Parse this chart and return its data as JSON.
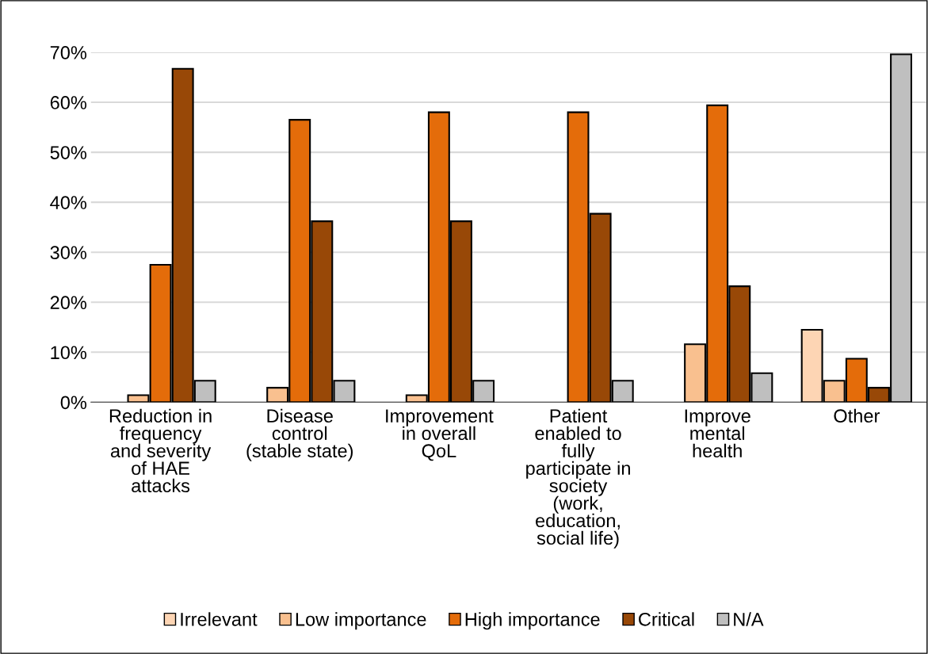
{
  "chart_data": {
    "type": "bar",
    "categories": [
      "Reduction in\nfrequency\nand severity\nof HAE\nattacks",
      "Disease\ncontrol\n(stable state)",
      "Improvement\nin overall\nQoL",
      "Patient\nenabled to\nfully\nparticipate in\nsociety\n(work,\neducation,\nsocial life)",
      "Improve\nmental\nhealth",
      "Other"
    ],
    "series": [
      {
        "name": "Irrelevant",
        "color": "#fdd5b4",
        "values": [
          null,
          null,
          null,
          null,
          null,
          14.5
        ]
      },
      {
        "name": "Low importance",
        "color": "#f9c08f",
        "values": [
          1.4,
          2.9,
          1.4,
          null,
          11.6,
          4.3
        ]
      },
      {
        "name": "High importance",
        "color": "#e46c0a",
        "values": [
          27.5,
          56.5,
          58.0,
          58.0,
          59.4,
          8.7
        ]
      },
      {
        "name": "Critical",
        "color": "#984807",
        "values": [
          66.7,
          36.2,
          36.2,
          37.7,
          23.2,
          2.9
        ]
      },
      {
        "name": "N/A",
        "color": "#bfbfbf",
        "values": [
          4.3,
          4.3,
          4.3,
          4.3,
          5.8,
          69.6
        ]
      }
    ],
    "ylim": [
      0,
      70
    ],
    "yticks": [
      {
        "value": 0,
        "label": "0%"
      },
      {
        "value": 10,
        "label": "10%"
      },
      {
        "value": 20,
        "label": "20%"
      },
      {
        "value": 30,
        "label": "30%"
      },
      {
        "value": 40,
        "label": "40%"
      },
      {
        "value": 50,
        "label": "50%"
      },
      {
        "value": 60,
        "label": "60%"
      },
      {
        "value": 70,
        "label": "70%"
      }
    ],
    "grid": "y",
    "legend": "bottom"
  }
}
